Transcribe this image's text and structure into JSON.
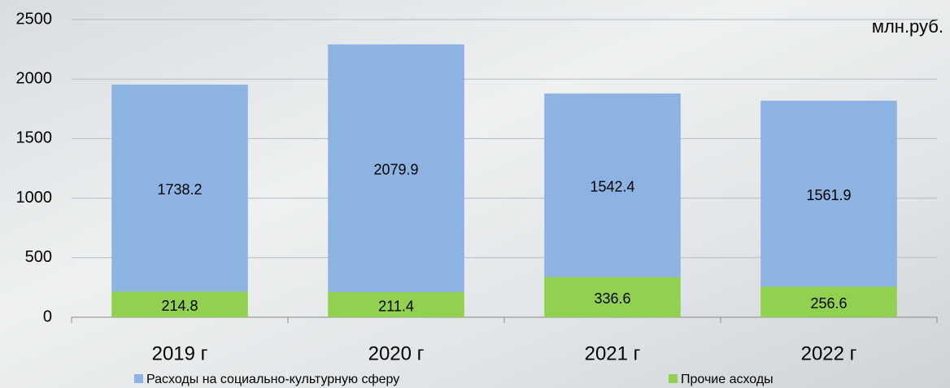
{
  "chart_data": {
    "type": "stacked_bar",
    "annotation": "млн.руб.",
    "categories": [
      "2019 г",
      "2020 г",
      "2021 г",
      "2022 г"
    ],
    "series": [
      {
        "name": "Расходы на социально-культурную сферу",
        "color": "#8db3e2",
        "values": [
          1738.2,
          2079.9,
          1542.4,
          1561.9
        ]
      },
      {
        "name": "Прочие асходы",
        "color": "#92d050",
        "values": [
          214.8,
          211.4,
          336.6,
          256.6
        ]
      }
    ],
    "ylim": [
      0,
      2500
    ],
    "yticks": [
      0,
      500,
      1000,
      1500,
      2000,
      2500
    ],
    "grid": true,
    "legend": "bottom"
  }
}
